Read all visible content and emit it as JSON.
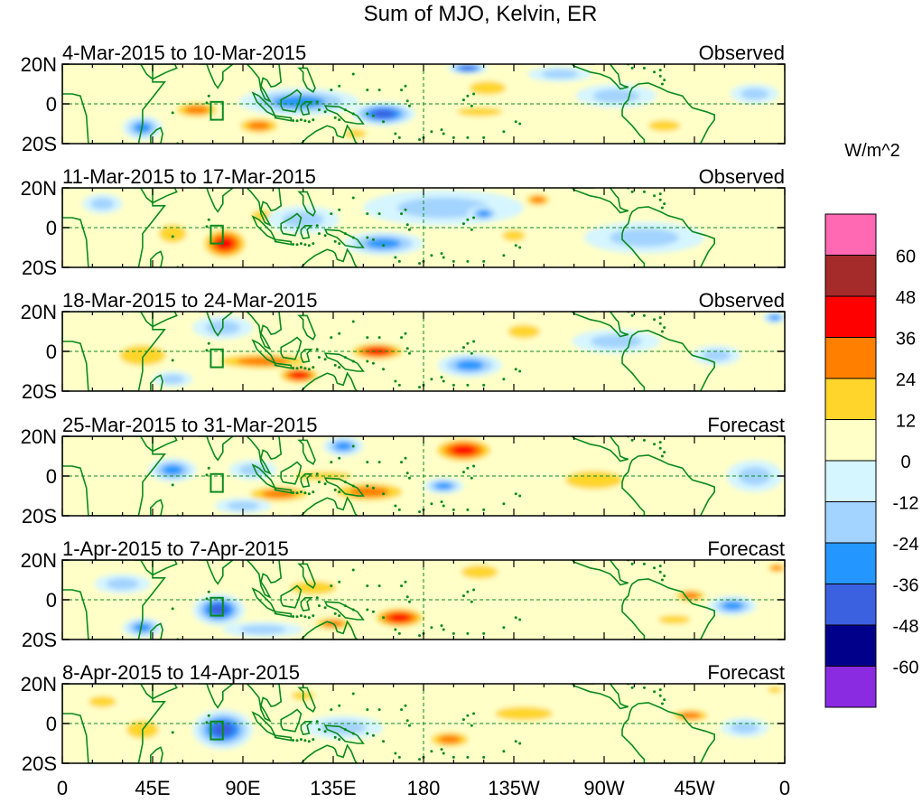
{
  "title": "Sum of MJO, Kelvin, ER",
  "colorbar": {
    "unit_label": "W/m^2",
    "levels": [
      "60",
      "48",
      "36",
      "24",
      "12",
      "0",
      "-12",
      "-24",
      "-36",
      "-48",
      "-60"
    ],
    "colors": [
      "#ff69b4",
      "#a52a2a",
      "#ff0000",
      "#ff7f00",
      "#ffd52b",
      "#ffffc8",
      "#d5f5ff",
      "#a3d3ff",
      "#2496ff",
      "#3b60e0",
      "#00008b",
      "#8a2be2"
    ]
  },
  "axes": {
    "y_ticks": [
      "20N",
      "0",
      "20S"
    ],
    "x_ticks": [
      "0",
      "45E",
      "90E",
      "135E",
      "180",
      "135W",
      "90W",
      "45W",
      "0"
    ],
    "lon_range": [
      0,
      360
    ],
    "lat_range": [
      -20,
      20
    ]
  },
  "panels": [
    {
      "date_range": "4-Mar-2015 to 10-Mar-2015",
      "status": "Observed",
      "anomalies": [
        {
          "lon": 78,
          "lat": 8,
          "rx": 10,
          "ry": 5,
          "value": 10
        },
        {
          "lon": 67,
          "lat": -3,
          "rx": 14,
          "ry": 5,
          "value": 24
        },
        {
          "lon": 98,
          "lat": -11,
          "rx": 13,
          "ry": 5,
          "value": 26
        },
        {
          "lon": 40,
          "lat": -12,
          "rx": 10,
          "ry": 6,
          "value": -30
        },
        {
          "lon": 118,
          "lat": 1,
          "rx": 30,
          "ry": 7,
          "value": -32
        },
        {
          "lon": 160,
          "lat": -5,
          "rx": 16,
          "ry": 6,
          "value": -36
        },
        {
          "lon": 146,
          "lat": -15,
          "rx": 10,
          "ry": 4,
          "value": 20
        },
        {
          "lon": 212,
          "lat": 8,
          "rx": 16,
          "ry": 6,
          "value": 18
        },
        {
          "lon": 208,
          "lat": -4,
          "rx": 20,
          "ry": 4,
          "value": 14
        },
        {
          "lon": 202,
          "lat": 18,
          "rx": 10,
          "ry": 3,
          "value": -42
        },
        {
          "lon": 276,
          "lat": 4,
          "rx": 20,
          "ry": 6,
          "value": -18
        },
        {
          "lon": 300,
          "lat": -11,
          "rx": 14,
          "ry": 5,
          "value": 22
        },
        {
          "lon": 248,
          "lat": 15,
          "rx": 16,
          "ry": 4,
          "value": -14
        },
        {
          "lon": 345,
          "lat": 5,
          "rx": 12,
          "ry": 5,
          "value": -16
        }
      ]
    },
    {
      "date_range": "11-Mar-2015 to 17-Mar-2015",
      "status": "Observed",
      "anomalies": [
        {
          "lon": 81,
          "lat": -8,
          "rx": 13,
          "ry": 9,
          "value": 46
        },
        {
          "lon": 100,
          "lat": 6,
          "rx": 10,
          "ry": 5,
          "value": 14
        },
        {
          "lon": 55,
          "lat": -3,
          "rx": 12,
          "ry": 8,
          "value": 18
        },
        {
          "lon": 20,
          "lat": 12,
          "rx": 10,
          "ry": 5,
          "value": -15
        },
        {
          "lon": 120,
          "lat": 4,
          "rx": 18,
          "ry": 7,
          "value": -18
        },
        {
          "lon": 160,
          "lat": -8,
          "rx": 20,
          "ry": 6,
          "value": -33
        },
        {
          "lon": 190,
          "lat": 10,
          "rx": 40,
          "ry": 9,
          "value": -16
        },
        {
          "lon": 210,
          "lat": 7,
          "rx": 8,
          "ry": 4,
          "value": -32
        },
        {
          "lon": 237,
          "lat": 14,
          "rx": 8,
          "ry": 4,
          "value": 28
        },
        {
          "lon": 225,
          "lat": -4,
          "rx": 10,
          "ry": 5,
          "value": 20
        },
        {
          "lon": 290,
          "lat": -5,
          "rx": 30,
          "ry": 8,
          "value": -14
        }
      ]
    },
    {
      "date_range": "18-Mar-2015 to 24-Mar-2015",
      "status": "Observed",
      "anomalies": [
        {
          "lon": 100,
          "lat": -5,
          "rx": 30,
          "ry": 5,
          "value": 30
        },
        {
          "lon": 118,
          "lat": -12,
          "rx": 12,
          "ry": 5,
          "value": 40
        },
        {
          "lon": 157,
          "lat": 0,
          "rx": 16,
          "ry": 5,
          "value": 44
        },
        {
          "lon": 40,
          "lat": -2,
          "rx": 20,
          "ry": 9,
          "value": 18
        },
        {
          "lon": 80,
          "lat": 12,
          "rx": 15,
          "ry": 6,
          "value": -18
        },
        {
          "lon": 55,
          "lat": -14,
          "rx": 10,
          "ry": 4,
          "value": -16
        },
        {
          "lon": 203,
          "lat": -7,
          "rx": 16,
          "ry": 6,
          "value": -33
        },
        {
          "lon": 230,
          "lat": 10,
          "rx": 14,
          "ry": 6,
          "value": 16
        },
        {
          "lon": 276,
          "lat": 5,
          "rx": 22,
          "ry": 6,
          "value": -14
        },
        {
          "lon": 326,
          "lat": -2,
          "rx": 12,
          "ry": 5,
          "value": -16
        },
        {
          "lon": 355,
          "lat": 17,
          "rx": 6,
          "ry": 3,
          "value": -30
        }
      ]
    },
    {
      "date_range": "25-Mar-2015 to 31-Mar-2015",
      "status": "Forecast",
      "anomalies": [
        {
          "lon": 200,
          "lat": 13,
          "rx": 17,
          "ry": 7,
          "value": 42
        },
        {
          "lon": 153,
          "lat": -8,
          "rx": 23,
          "ry": 6,
          "value": 33
        },
        {
          "lon": 108,
          "lat": -9,
          "rx": 20,
          "ry": 5,
          "value": 28
        },
        {
          "lon": 130,
          "lat": 0,
          "rx": 25,
          "ry": 4,
          "value": 18
        },
        {
          "lon": 55,
          "lat": 3,
          "rx": 12,
          "ry": 6,
          "value": -28
        },
        {
          "lon": 95,
          "lat": 3,
          "rx": 12,
          "ry": 5,
          "value": -18
        },
        {
          "lon": 90,
          "lat": -15,
          "rx": 14,
          "ry": 4,
          "value": -20
        },
        {
          "lon": 140,
          "lat": 15,
          "rx": 10,
          "ry": 5,
          "value": -32
        },
        {
          "lon": 190,
          "lat": -5,
          "rx": 10,
          "ry": 4,
          "value": -30
        },
        {
          "lon": 265,
          "lat": -2,
          "rx": 25,
          "ry": 8,
          "value": 16
        },
        {
          "lon": 345,
          "lat": 0,
          "rx": 14,
          "ry": 8,
          "value": -16
        }
      ]
    },
    {
      "date_range": "1-Apr-2015 to 7-Apr-2015",
      "status": "Forecast",
      "anomalies": [
        {
          "lon": 78,
          "lat": -5,
          "rx": 13,
          "ry": 8,
          "value": -40
        },
        {
          "lon": 168,
          "lat": -9,
          "rx": 15,
          "ry": 6,
          "value": 45
        },
        {
          "lon": 135,
          "lat": -12,
          "rx": 12,
          "ry": 4,
          "value": 28
        },
        {
          "lon": 125,
          "lat": 6,
          "rx": 20,
          "ry": 6,
          "value": 16
        },
        {
          "lon": 100,
          "lat": -15,
          "rx": 20,
          "ry": 4,
          "value": -14
        },
        {
          "lon": 208,
          "lat": 14,
          "rx": 16,
          "ry": 6,
          "value": 18
        },
        {
          "lon": 40,
          "lat": -14,
          "rx": 10,
          "ry": 5,
          "value": -26
        },
        {
          "lon": 30,
          "lat": 8,
          "rx": 14,
          "ry": 5,
          "value": -16
        },
        {
          "lon": 313,
          "lat": 2,
          "rx": 10,
          "ry": 4,
          "value": 28
        },
        {
          "lon": 334,
          "lat": -3,
          "rx": 12,
          "ry": 5,
          "value": -34
        },
        {
          "lon": 356,
          "lat": 16,
          "rx": 6,
          "ry": 3,
          "value": 32
        },
        {
          "lon": 305,
          "lat": -10,
          "rx": 14,
          "ry": 4,
          "value": 14
        }
      ]
    },
    {
      "date_range": "8-Apr-2015 to 14-Apr-2015",
      "status": "Forecast",
      "anomalies": [
        {
          "lon": 80,
          "lat": -3,
          "rx": 15,
          "ry": 10,
          "value": -40
        },
        {
          "lon": 193,
          "lat": -8,
          "rx": 13,
          "ry": 5,
          "value": 30
        },
        {
          "lon": 120,
          "lat": 14,
          "rx": 10,
          "ry": 4,
          "value": 20
        },
        {
          "lon": 20,
          "lat": 11,
          "rx": 12,
          "ry": 5,
          "value": 16
        },
        {
          "lon": 40,
          "lat": -3,
          "rx": 14,
          "ry": 8,
          "value": 14
        },
        {
          "lon": 140,
          "lat": -2,
          "rx": 20,
          "ry": 6,
          "value": -16
        },
        {
          "lon": 230,
          "lat": 5,
          "rx": 25,
          "ry": 6,
          "value": 12
        },
        {
          "lon": 313,
          "lat": 4,
          "rx": 12,
          "ry": 4,
          "value": 24
        },
        {
          "lon": 340,
          "lat": -2,
          "rx": 12,
          "ry": 5,
          "value": -18
        },
        {
          "lon": 355,
          "lat": 17,
          "rx": 6,
          "ry": 3,
          "value": 20
        }
      ]
    }
  ]
}
